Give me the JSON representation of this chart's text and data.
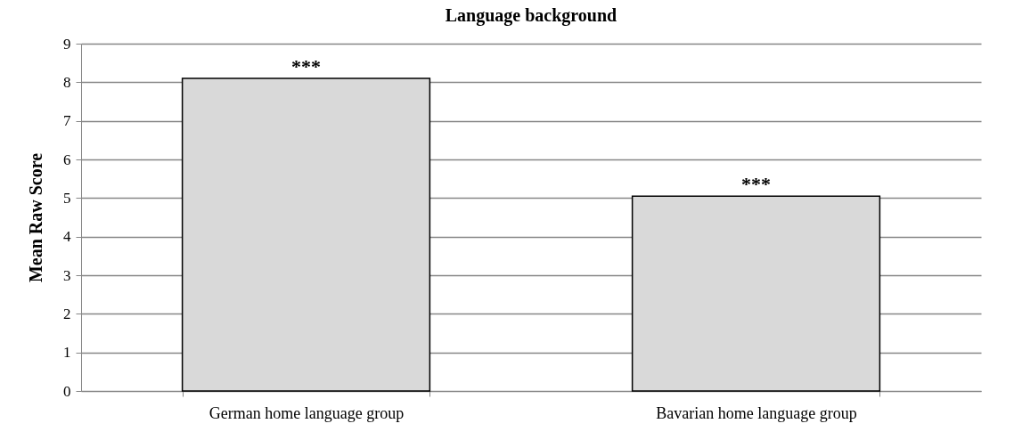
{
  "chart_data": {
    "type": "bar",
    "title": "Language background",
    "ylabel": "Mean Raw Score",
    "categories": [
      "German home language group",
      "Bavarian home language group"
    ],
    "values": [
      8.1,
      5.05
    ],
    "color": "#d9d9d9",
    "ylim": [
      0,
      9
    ],
    "yticks": [
      0,
      1,
      2,
      3,
      4,
      5,
      6,
      7,
      8,
      9
    ],
    "grid": "y",
    "annotations": [
      {
        "text": "***",
        "x": "German home language group",
        "y": 8.1
      },
      {
        "text": "***",
        "x": "Bavarian home language group",
        "y": 5.05
      }
    ]
  }
}
